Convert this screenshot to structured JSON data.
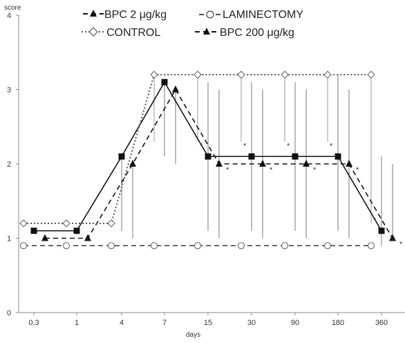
{
  "chart_data": {
    "type": "line",
    "ylabel": "score",
    "xlabel": "days",
    "ylim": [
      0,
      4
    ],
    "y_ticks": [
      "0",
      "1",
      "2",
      "3",
      "4"
    ],
    "categories": [
      "0,3",
      "1",
      "4",
      "7",
      "15",
      "30",
      "90",
      "180",
      "360"
    ],
    "grid": false,
    "legend_position": "top",
    "series": [
      {
        "name": "BPC 2 μg/kg",
        "style": "solid",
        "marker": "square-filled",
        "values": [
          1.1,
          1.1,
          2.1,
          3.1,
          2.1,
          2.1,
          2.1,
          2.1,
          1.1
        ],
        "err_low": [
          null,
          null,
          1.1,
          2.1,
          1.1,
          1.1,
          1.1,
          1.1,
          0.9
        ],
        "err_high": [
          null,
          null,
          2.1,
          3.1,
          3.1,
          3.1,
          3.1,
          3.2,
          2.1
        ],
        "significant": [
          false,
          false,
          false,
          false,
          true,
          true,
          true,
          true,
          true
        ]
      },
      {
        "name": "BPC 200 μg/kg",
        "style": "dashed",
        "marker": "triangle-filled",
        "values": [
          1.0,
          1.0,
          2.0,
          3.0,
          2.0,
          2.0,
          2.0,
          2.0,
          1.0
        ],
        "err_low": [
          null,
          null,
          1.0,
          2.0,
          1.0,
          1.0,
          1.0,
          1.0,
          1.0
        ],
        "err_high": [
          null,
          null,
          2.0,
          3.0,
          3.0,
          3.0,
          3.0,
          3.0,
          2.0
        ],
        "significant": [
          false,
          false,
          false,
          false,
          true,
          true,
          true,
          true,
          true
        ]
      },
      {
        "name": "LAMINECTOMY",
        "style": "dashed",
        "marker": "circle-open",
        "values": [
          0.9,
          0.9,
          0.9,
          0.9,
          0.9,
          0.9,
          0.9,
          0.9,
          0.9
        ]
      },
      {
        "name": "CONTROL",
        "style": "dotted",
        "marker": "diamond-open",
        "values": [
          1.2,
          1.2,
          1.2,
          3.2,
          3.2,
          3.2,
          3.2,
          3.2,
          3.2
        ],
        "err_low": [
          null,
          null,
          1.2,
          2.3,
          2.3,
          2.3,
          2.3,
          2.3,
          1.2
        ],
        "err_high": [
          null,
          null,
          null,
          null,
          null,
          null,
          null,
          null,
          null
        ]
      }
    ],
    "significance_mark": "*"
  },
  "legend": {
    "bpc2": "BPC 2 μg/kg",
    "laminectomy": "LAMINECTOMY",
    "control": "CONTROL",
    "bpc200": "BPC 200 μg/kg"
  },
  "colors": {
    "ink": "#111111",
    "axis": "#888888",
    "control": "#666666"
  }
}
